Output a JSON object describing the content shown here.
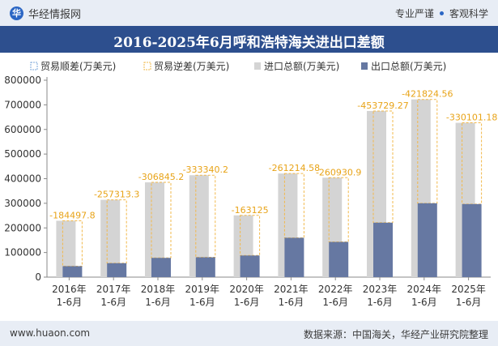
{
  "header": {
    "logo_glyph": "华",
    "brand": "华经情报网",
    "tag1": "专业严谨",
    "tag2": "客观科学"
  },
  "footer": {
    "url": "www.huaon.com",
    "source": "数据来源：中国海关，华经产业研究院整理"
  },
  "colors": {
    "import": "#d4d4d4",
    "export": "#6678a2",
    "deficit_border": "#f2b84b",
    "title_bg": "#2d4f8e"
  },
  "chart_data": {
    "type": "bar",
    "title": "2016-2025年6月呼和浩特海关进出口差额",
    "categories": [
      "2016年\n1-6月",
      "2017年\n1-6月",
      "2018年\n1-6月",
      "2019年\n1-6月",
      "2020年\n1-6月",
      "2021年\n1-6月",
      "2022年\n1-6月",
      "2023年\n1-6月",
      "2024年\n1-6月",
      "2025年\n1-6月"
    ],
    "legend": [
      "贸易顺差(万美元)",
      "贸易逆差(万美元)",
      "进口总额(万美元)",
      "出口总额(万美元)"
    ],
    "legend_position": "top",
    "ylim": [
      0,
      800000
    ],
    "yticks": [
      0,
      100000,
      200000,
      300000,
      400000,
      500000,
      600000,
      700000,
      800000
    ],
    "grid": false,
    "series": [
      {
        "name": "进口总额(万美元)",
        "values": [
          229000,
          314000,
          385000,
          414000,
          251000,
          421000,
          404000,
          675000,
          722000,
          627000
        ]
      },
      {
        "name": "出口总额(万美元)",
        "values": [
          44500,
          56700,
          78200,
          80660,
          87875,
          159785,
          143070,
          221271,
          300176,
          296899
        ]
      },
      {
        "name": "贸易逆差(万美元)",
        "values": [
          -184497.8,
          -257313.3,
          -306845.2,
          -333340.2,
          -163125,
          -261214.58,
          -260930.9,
          -453729.27,
          -421824.56,
          -330101.18
        ]
      }
    ],
    "data_labels": [
      "-184497.8",
      "-257313.3",
      "-306845.2",
      "-333340.2",
      "-163125",
      "-261214.58",
      "-260930.9",
      "-453729.27",
      "-421824.56",
      "-330101.18"
    ]
  }
}
